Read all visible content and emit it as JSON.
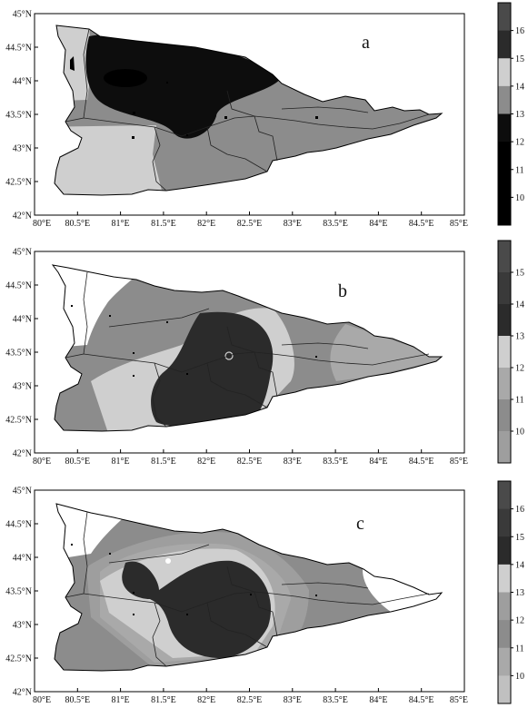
{
  "panels": [
    {
      "id": "a",
      "letter": "a",
      "colorbar": {
        "labels": [
          "16",
          "15",
          "14",
          "13",
          "12",
          "11",
          "10"
        ],
        "colors": [
          "#4a4a4a",
          "#2b2b2b",
          "#cfcfcf",
          "#8c8c8c",
          "#0d0d0d",
          "#000000",
          "#000000",
          "#000000"
        ]
      },
      "lat_labels": [
        "45°N",
        "44.5°N",
        "44°N",
        "43.5°N",
        "43°N",
        "42.5°N",
        "42°N"
      ],
      "lon_labels": [
        "80°E",
        "80.5°E",
        "81°E",
        "81.5°E",
        "82°E",
        "82.5°E",
        "83°E",
        "83.5°E",
        "84°E",
        "84.5°E",
        "85°E"
      ]
    },
    {
      "id": "b",
      "letter": "b",
      "colorbar": {
        "labels": [
          "15",
          "14",
          "13",
          "12",
          "11",
          "10"
        ],
        "colors": [
          "#4a4a4a",
          "#3a3a3a",
          "#2b2b2b",
          "#cfcfcf",
          "#a9a9a9",
          "#8c8c8c",
          "#9e9e9e"
        ]
      },
      "lat_labels": [
        "45°N",
        "44.5°N",
        "44°N",
        "43.5°N",
        "43°N",
        "42.5°N",
        "42°N"
      ],
      "lon_labels": [
        "80°E",
        "80.5°E",
        "81°E",
        "81.5°E",
        "82°E",
        "82.5°E",
        "83°E",
        "83.5°E",
        "84°E",
        "84.5°E",
        "85°E"
      ]
    },
    {
      "id": "c",
      "letter": "c",
      "colorbar": {
        "labels": [
          "16",
          "15",
          "14",
          "13",
          "12",
          "11",
          "10"
        ],
        "colors": [
          "#4a4a4a",
          "#3a3a3a",
          "#2b2b2b",
          "#cfcfcf",
          "#9e9e9e",
          "#8c8c8c",
          "#a9a9a9",
          "#c0c0c0"
        ]
      },
      "lat_labels": [
        "45°N",
        "44.5°N",
        "44°N",
        "43.5°N",
        "43°N",
        "42.5°N",
        "42°N"
      ],
      "lon_labels": [
        "80°E",
        "80.5°E",
        "81°E",
        "81.5°E",
        "82°E",
        "82.5°E",
        "83°E",
        "83.5°E",
        "84°E",
        "84.5°E",
        "85°E"
      ]
    }
  ]
}
